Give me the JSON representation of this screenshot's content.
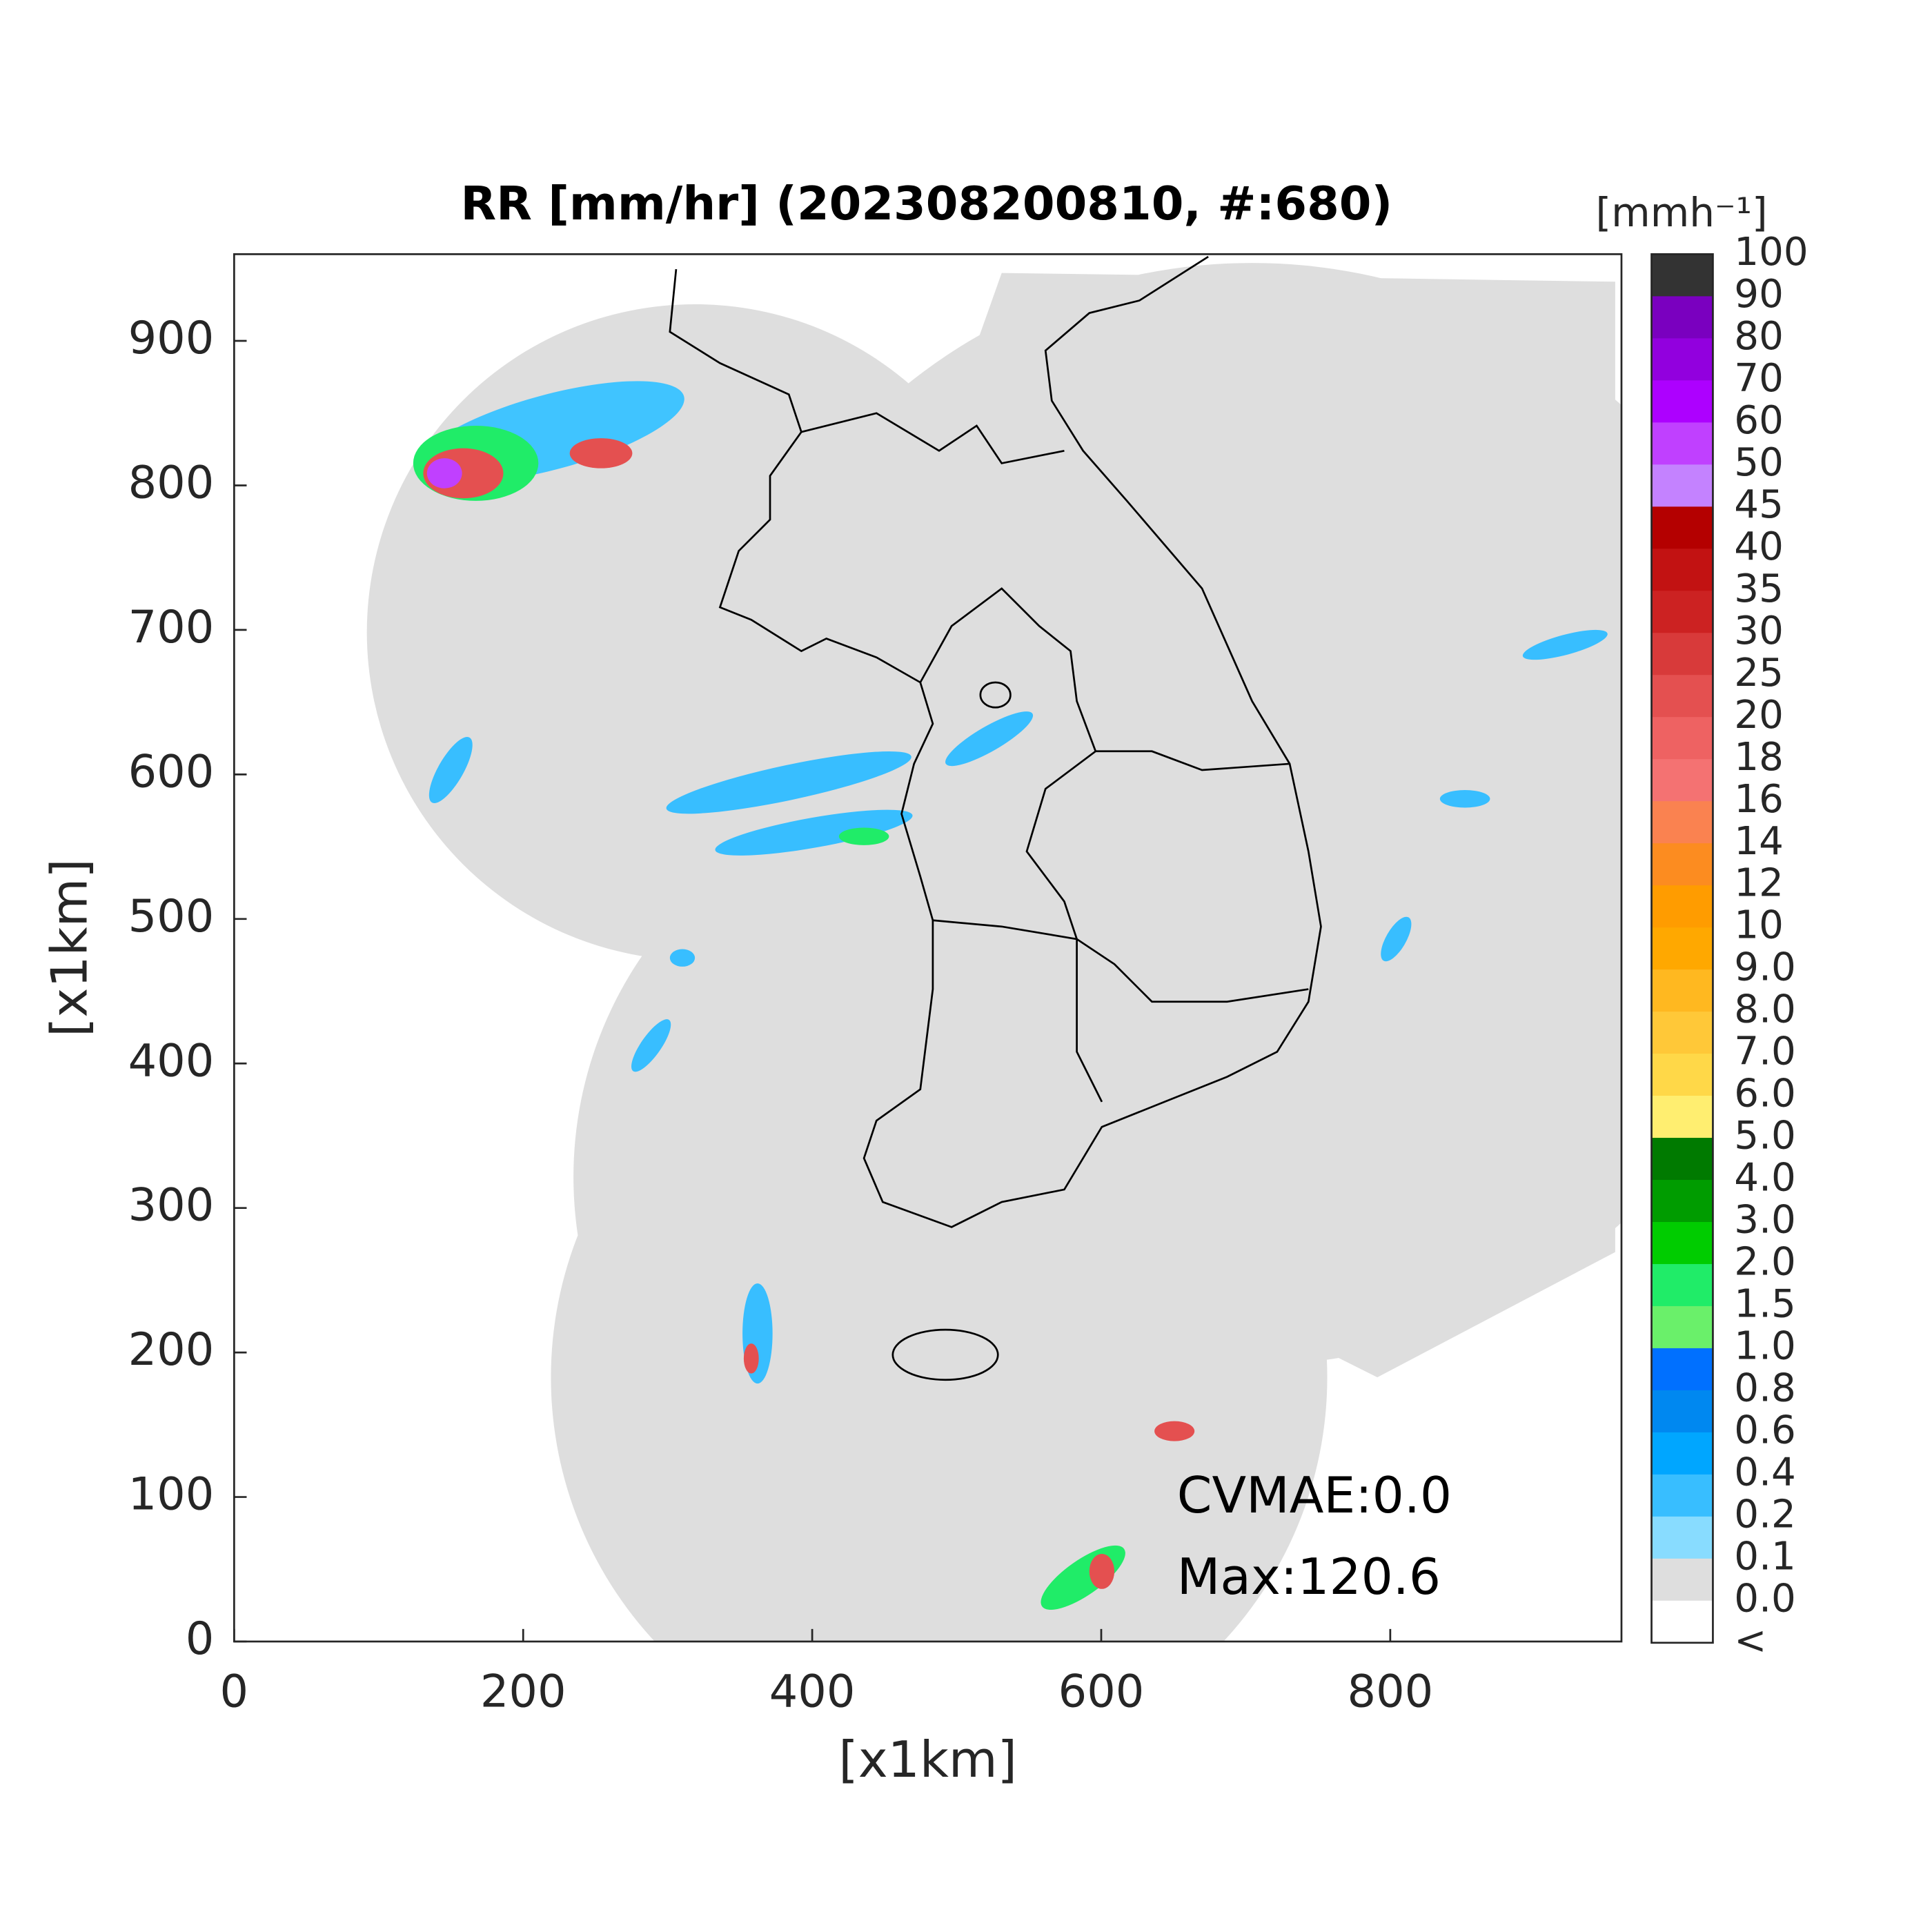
{
  "chart_data": {
    "type": "map",
    "title": "RR [mm/hr] (202308200810, #:680)",
    "x_label": "[x1km]",
    "y_label": "[x1km]",
    "xlim": [
      0,
      960
    ],
    "ylim": [
      0,
      960
    ],
    "xticks": [
      0,
      200,
      400,
      600,
      800
    ],
    "yticks": [
      0,
      100,
      200,
      300,
      400,
      500,
      600,
      700,
      800,
      900
    ],
    "annotations": [
      "CVMAE:0.0",
      "Max:120.6"
    ],
    "colorbar": {
      "unit": "[mmh⁻¹]",
      "labels": [
        "100",
        "90",
        "80",
        "70",
        "60",
        "50",
        "45",
        "40",
        "35",
        "30",
        "25",
        "20",
        "18",
        "16",
        "14",
        "12",
        "10",
        "9.0",
        "8.0",
        "7.0",
        "6.0",
        "5.0",
        "4.0",
        "3.0",
        "2.0",
        "1.5",
        "1.0",
        "0.8",
        "0.6",
        "0.4",
        "0.2",
        "0.1",
        "0.0",
        "<"
      ],
      "colors": [
        "#333333",
        "#7a00bf",
        "#9200de",
        "#ad00ff",
        "#c040ff",
        "#c482ff",
        "#b40000",
        "#c21212",
        "#cc2222",
        "#d83a3a",
        "#e45050",
        "#ee6262",
        "#f47272",
        "#fa8250",
        "#fc8c20",
        "#ff9c00",
        "#ffa800",
        "#ffb820",
        "#ffc838",
        "#ffd848",
        "#ffee70",
        "#007a00",
        "#009c00",
        "#00cc00",
        "#20ec68",
        "#6af06a",
        "#0070ff",
        "#0088f0",
        "#00a6ff",
        "#38beff",
        "#88dcff",
        "#dedede",
        "#ffffff"
      ]
    }
  }
}
